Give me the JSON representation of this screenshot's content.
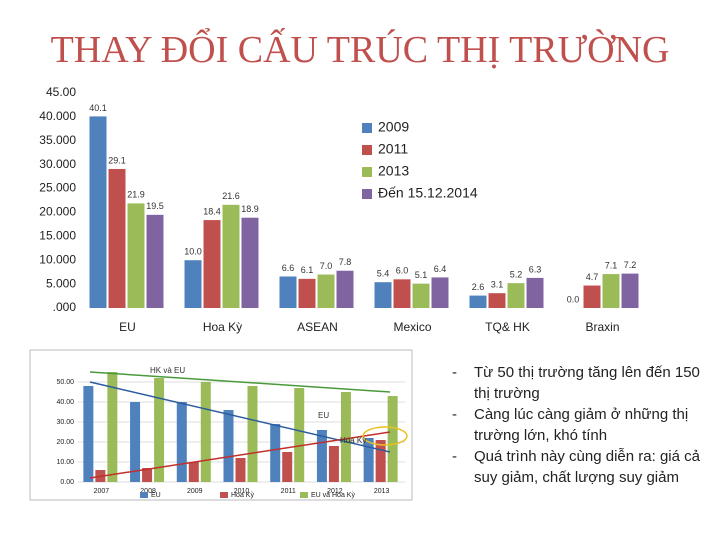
{
  "title": "THAY ĐỔI CẤU TRÚC THỊ TRƯỜNG",
  "chart_data": [
    {
      "type": "bar",
      "categories": [
        "EU",
        "Hoa Kỳ",
        "ASEAN",
        "Mexico",
        "TQ& HK",
        "Braxin"
      ],
      "series": [
        {
          "name": "2009",
          "color": "#4f81bd",
          "values": [
            40.1,
            10.0,
            6.6,
            5.4,
            2.6,
            0.0
          ],
          "value_labels": [
            "40.1",
            "10.0",
            "6.6",
            "5.4",
            "2.6",
            "0.0"
          ]
        },
        {
          "name": "2011",
          "color": "#c0504d",
          "values": [
            29.1,
            18.4,
            6.1,
            6.0,
            3.1,
            4.7
          ],
          "value_labels": [
            "29.1",
            "18.4",
            "6.1",
            "6.0",
            "3.1",
            "4.7"
          ]
        },
        {
          "name": "2013",
          "color": "#9bbb59",
          "values": [
            21.9,
            21.6,
            7.0,
            5.1,
            5.2,
            7.1
          ],
          "value_labels": [
            "21.9",
            "21.6",
            "7.0",
            "5.1",
            "5.2",
            "7.1"
          ]
        },
        {
          "name": "Đến 15.12.2014",
          "color": "#8064a2",
          "values": [
            19.5,
            18.9,
            7.8,
            6.4,
            6.3,
            7.2
          ],
          "value_labels": [
            "19.5",
            "18.9",
            "7.8",
            "6.4",
            "6.3",
            "7.2"
          ]
        }
      ],
      "ylim": [
        0,
        45
      ],
      "yticks": [
        {
          "value": 0,
          "label": ".000"
        },
        {
          "value": 5,
          "label": "5.000"
        },
        {
          "value": 10,
          "label": "10.000"
        },
        {
          "value": 15,
          "label": "15.000"
        },
        {
          "value": 20,
          "label": "20.000"
        },
        {
          "value": 25,
          "label": "25.000"
        },
        {
          "value": 30,
          "label": "30.000"
        },
        {
          "value": 35,
          "label": "35.000"
        },
        {
          "value": 40,
          "label": "40.000"
        },
        {
          "value": 45,
          "label": "45.00"
        }
      ],
      "legend": "right"
    },
    {
      "type": "bar",
      "categories": [
        "2007",
        "2008",
        "2009",
        "2010",
        "2011",
        "2012",
        "2013"
      ],
      "series": [
        {
          "name": "EU",
          "color": "#4f81bd",
          "values": [
            48,
            40,
            40,
            36,
            29,
            26,
            22
          ]
        },
        {
          "name": "Hoa Kỳ",
          "color": "#c0504d",
          "values": [
            6,
            7,
            10,
            12,
            15,
            18,
            21
          ]
        },
        {
          "name": "EU và Hoa Kỳ",
          "color": "#9bbb59",
          "values": [
            55,
            52,
            50,
            48,
            47,
            45,
            43
          ]
        }
      ],
      "ylim": [
        0,
        60
      ],
      "yticks": [
        {
          "value": 0,
          "label": "0.00"
        },
        {
          "value": 10,
          "label": "10.00"
        },
        {
          "value": 20,
          "label": "20.00"
        },
        {
          "value": 30,
          "label": "30.00"
        },
        {
          "value": 40,
          "label": "40.00"
        },
        {
          "value": 50,
          "label": "50.00"
        }
      ],
      "annotations": [
        "HK và EU",
        "EU",
        "Hoa Kỳ"
      ],
      "legend": "bottom"
    }
  ],
  "notes": [
    "Từ 50 thị trường tăng lên đến 150 thị trường",
    "Càng lúc càng giảm ở những thị trường lớn, khó tính",
    "Quá trình này cùng diễn ra: giá cả suy giảm, chất lượng suy giảm"
  ]
}
